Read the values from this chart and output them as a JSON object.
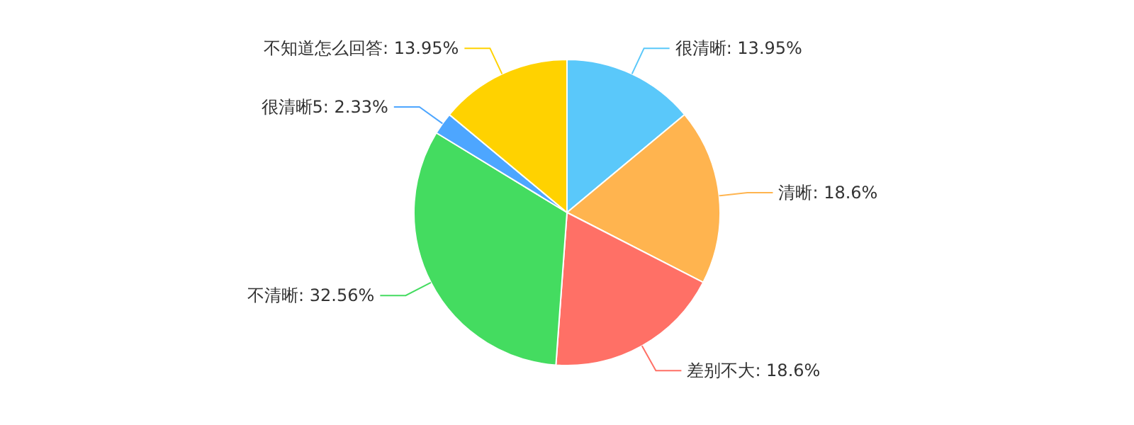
{
  "chart_data": {
    "type": "pie",
    "categories": [
      "很清晰",
      "清晰",
      "差别不大",
      "不清晰",
      "很清晰5",
      "不知道怎么回答"
    ],
    "values": [
      13.95,
      18.6,
      18.6,
      32.56,
      2.33,
      13.95
    ],
    "value_labels": [
      "13.95%",
      "18.6%",
      "18.6%",
      "32.56%",
      "2.33%",
      "13.95%"
    ],
    "colors": [
      "#5ac8fa",
      "#ffb44f",
      "#ff7066",
      "#44dc60",
      "#4da6ff",
      "#ffd200"
    ],
    "legend": false
  }
}
